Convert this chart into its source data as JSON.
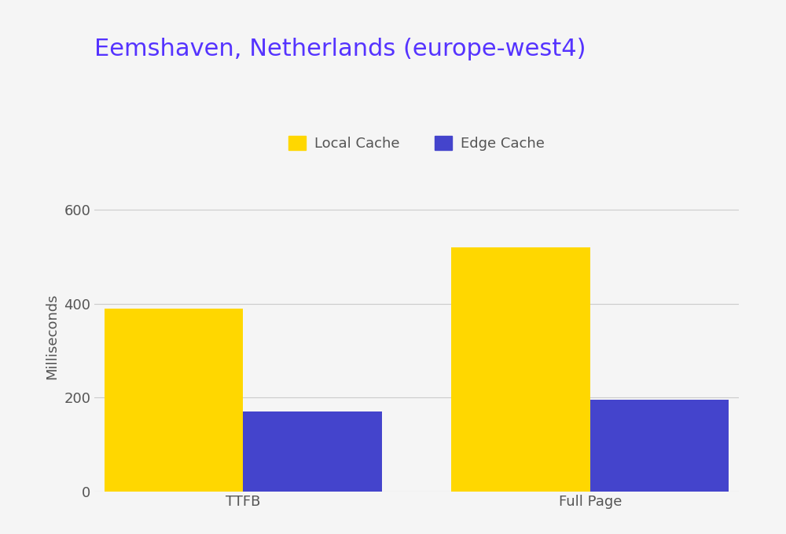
{
  "title": "Eemshaven, Netherlands (europe-west4)",
  "title_color": "#5533ff",
  "title_fontsize": 22,
  "categories": [
    "TTFB",
    "Full Page"
  ],
  "local_cache_values": [
    390,
    520
  ],
  "edge_cache_values": [
    170,
    195
  ],
  "local_cache_color": "#FFD700",
  "edge_cache_color": "#4444CC",
  "ylabel": "Milliseconds",
  "ylabel_fontsize": 13,
  "ylim": [
    0,
    660
  ],
  "yticks": [
    0,
    200,
    400,
    600
  ],
  "legend_labels": [
    "Local Cache",
    "Edge Cache"
  ],
  "tick_fontsize": 13,
  "background_color": "#F5F5F5",
  "bar_width": 0.28,
  "group_positions": [
    0.3,
    1.0
  ]
}
